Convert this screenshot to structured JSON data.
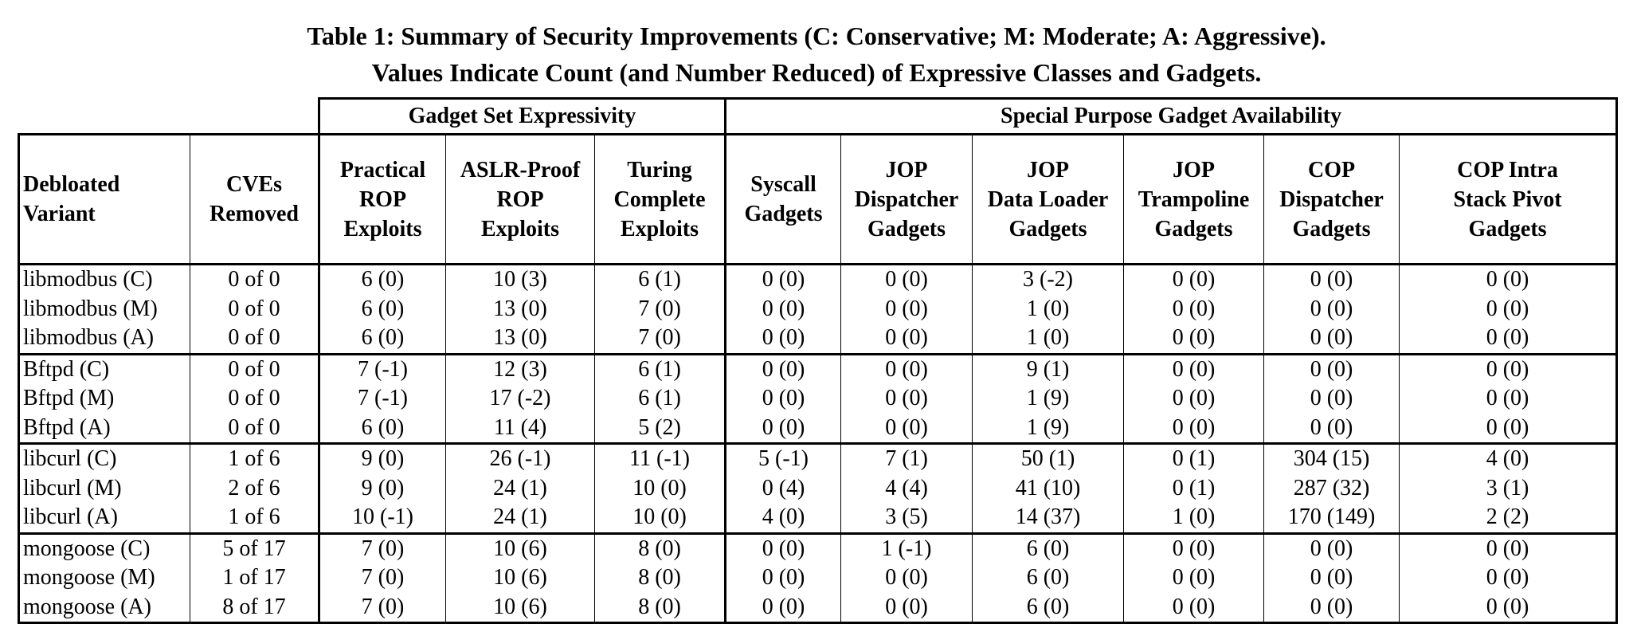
{
  "caption": {
    "line1": "Table 1: Summary of Security Improvements (C: Conservative; M: Moderate; A: Aggressive).",
    "line2": "Values Indicate Count (and Number Reduced) of Expressive Classes and Gadgets."
  },
  "groups": {
    "expressivity": "Gadget Set Expressivity",
    "special": "Special Purpose Gadget Availability"
  },
  "columns": [
    [
      "Debloated",
      "Variant"
    ],
    [
      "CVEs",
      "Removed"
    ],
    [
      "Practical",
      "ROP",
      "Exploits"
    ],
    [
      "ASLR-Proof",
      "ROP",
      "Exploits"
    ],
    [
      "Turing",
      "Complete",
      "Exploits"
    ],
    [
      "Syscall",
      "Gadgets"
    ],
    [
      "JOP",
      "Dispatcher",
      "Gadgets"
    ],
    [
      "JOP",
      "Data Loader",
      "Gadgets"
    ],
    [
      "JOP",
      "Trampoline",
      "Gadgets"
    ],
    [
      "COP",
      "Dispatcher",
      "Gadgets"
    ],
    [
      "COP Intra",
      "Stack Pivot",
      "Gadgets"
    ]
  ],
  "rows": [
    [
      "libmodbus (C)",
      "0 of 0",
      "6 (0)",
      "10 (3)",
      "6 (1)",
      "0 (0)",
      "0 (0)",
      "3 (-2)",
      "0 (0)",
      "0 (0)",
      "0 (0)"
    ],
    [
      "libmodbus (M)",
      "0 of 0",
      "6 (0)",
      "13 (0)",
      "7 (0)",
      "0 (0)",
      "0 (0)",
      "1 (0)",
      "0 (0)",
      "0 (0)",
      "0 (0)"
    ],
    [
      "libmodbus (A)",
      "0 of 0",
      "6 (0)",
      "13 (0)",
      "7 (0)",
      "0 (0)",
      "0 (0)",
      "1 (0)",
      "0 (0)",
      "0 (0)",
      "0 (0)"
    ],
    [
      "Bftpd (C)",
      "0 of 0",
      "7 (-1)",
      "12 (3)",
      "6 (1)",
      "0 (0)",
      "0 (0)",
      "9 (1)",
      "0 (0)",
      "0 (0)",
      "0 (0)"
    ],
    [
      "Bftpd (M)",
      "0 of 0",
      "7 (-1)",
      "17 (-2)",
      "6 (1)",
      "0 (0)",
      "0 (0)",
      "1 (9)",
      "0 (0)",
      "0 (0)",
      "0 (0)"
    ],
    [
      "Bftpd (A)",
      "0 of 0",
      "6 (0)",
      "11 (4)",
      "5 (2)",
      "0 (0)",
      "0 (0)",
      "1 (9)",
      "0 (0)",
      "0 (0)",
      "0 (0)"
    ],
    [
      "libcurl (C)",
      "1 of 6",
      "9 (0)",
      "26 (-1)",
      "11 (-1)",
      "5 (-1)",
      "7 (1)",
      "50 (1)",
      "0 (1)",
      "304 (15)",
      "4 (0)"
    ],
    [
      "libcurl (M)",
      "2 of 6",
      "9 (0)",
      "24 (1)",
      "10 (0)",
      "0 (4)",
      "4 (4)",
      "41 (10)",
      "0 (1)",
      "287 (32)",
      "3 (1)"
    ],
    [
      "libcurl (A)",
      "1 of 6",
      "10 (-1)",
      "24 (1)",
      "10 (0)",
      "4 (0)",
      "3 (5)",
      "14 (37)",
      "1 (0)",
      "170 (149)",
      "2 (2)"
    ],
    [
      "mongoose (C)",
      "5 of 17",
      "7 (0)",
      "10 (6)",
      "8 (0)",
      "0 (0)",
      "1 (-1)",
      "6 (0)",
      "0 (0)",
      "0 (0)",
      "0 (0)"
    ],
    [
      "mongoose (M)",
      "1 of 17",
      "7 (0)",
      "10 (6)",
      "8 (0)",
      "0 (0)",
      "0 (0)",
      "6 (0)",
      "0 (0)",
      "0 (0)",
      "0 (0)"
    ],
    [
      "mongoose (A)",
      "8 of 17",
      "7 (0)",
      "10 (6)",
      "8 (0)",
      "0 (0)",
      "0 (0)",
      "6 (0)",
      "0 (0)",
      "0 (0)",
      "0 (0)"
    ]
  ]
}
